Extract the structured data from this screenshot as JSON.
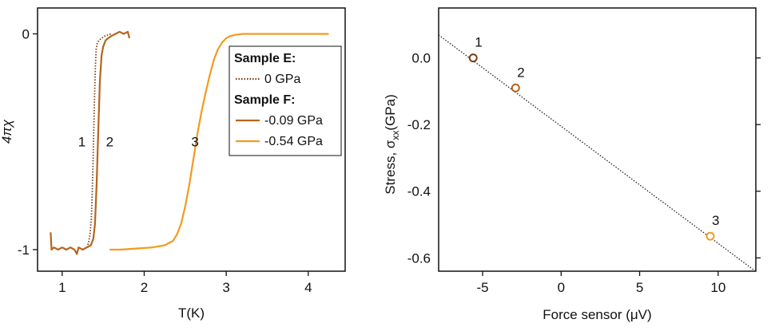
{
  "chart_data": [
    {
      "type": "line",
      "xlabel": "T(K)",
      "ylabel": "4πχ",
      "xlim": [
        0.7,
        4.45
      ],
      "ylim": [
        0.12,
        -1.1
      ],
      "xticks": [
        1,
        2,
        3,
        4
      ],
      "yticks": [
        -1,
        0
      ],
      "grid": false,
      "legend_placement": "top-right",
      "legend": [
        {
          "kind": "heading",
          "text": "Sample E:"
        },
        {
          "kind": "entry",
          "text": "0 GPa",
          "series": 0
        },
        {
          "kind": "heading",
          "text": "Sample F:"
        },
        {
          "kind": "entry",
          "text": "-0.09 GPa",
          "series": 1
        },
        {
          "kind": "entry",
          "text": "-0.54 GPa",
          "series": 2
        }
      ],
      "series": [
        {
          "name": "0 GPa",
          "color": "#7a3d10",
          "dash": "dotted",
          "label": "1",
          "x": [
            1.3,
            1.32,
            1.34,
            1.355,
            1.365,
            1.375,
            1.385,
            1.395,
            1.405,
            1.415,
            1.43,
            1.45,
            1.48,
            1.52,
            1.56,
            1.6
          ],
          "y": [
            -0.99,
            -0.97,
            -0.93,
            -0.86,
            -0.76,
            -0.62,
            -0.45,
            -0.28,
            -0.15,
            -0.07,
            -0.04,
            -0.03,
            -0.02,
            -0.01,
            -0.005,
            0.0
          ]
        },
        {
          "name": "-0.09 GPa",
          "color": "#b5651d",
          "dash": "solid",
          "label": "2",
          "x": [
            0.86,
            0.87,
            0.9,
            0.95,
            1.0,
            1.05,
            1.1,
            1.15,
            1.18,
            1.2,
            1.25,
            1.3,
            1.35,
            1.38,
            1.4,
            1.42,
            1.44,
            1.46,
            1.48,
            1.5,
            1.53,
            1.56,
            1.6,
            1.65,
            1.7,
            1.75,
            1.8,
            1.82
          ],
          "y": [
            -0.92,
            -1.0,
            -0.99,
            -1.0,
            -0.99,
            -1.0,
            -0.99,
            -1.0,
            -1.02,
            -0.99,
            -1.0,
            -0.99,
            -0.98,
            -0.95,
            -0.88,
            -0.7,
            -0.45,
            -0.22,
            -0.1,
            -0.06,
            -0.03,
            -0.02,
            -0.01,
            0.0,
            0.01,
            0.0,
            0.01,
            -0.02
          ]
        },
        {
          "name": "-0.54 GPa",
          "color": "#f39a1e",
          "dash": "solid",
          "label": "3",
          "x": [
            1.58,
            1.7,
            1.9,
            2.1,
            2.25,
            2.35,
            2.4,
            2.45,
            2.5,
            2.55,
            2.6,
            2.65,
            2.7,
            2.75,
            2.8,
            2.85,
            2.9,
            2.95,
            3.0,
            3.05,
            3.1,
            3.2,
            3.4,
            3.6,
            3.8,
            4.0,
            4.2,
            4.25
          ],
          "y": [
            -1.0,
            -1.0,
            -0.995,
            -0.99,
            -0.98,
            -0.96,
            -0.93,
            -0.88,
            -0.8,
            -0.7,
            -0.58,
            -0.46,
            -0.36,
            -0.27,
            -0.19,
            -0.12,
            -0.07,
            -0.04,
            -0.02,
            -0.01,
            -0.005,
            0.0,
            0.0,
            0.0,
            0.0,
            0.0,
            0.0,
            0.0
          ]
        }
      ]
    },
    {
      "type": "scatter",
      "xlabel": "Force sensor (μV)",
      "ylabel": "Stress, σxx(GPa)",
      "ylabel_parts": {
        "pre": "Stress, σ",
        "sub": "xx",
        "post": "(GPa)"
      },
      "xlim": [
        -7.8,
        12.4
      ],
      "ylim": [
        -0.64,
        0.15
      ],
      "xticks": [
        -5,
        0,
        5,
        10
      ],
      "yticks": [
        0.0,
        -0.2,
        -0.4,
        -0.6
      ],
      "ytick_labels": [
        "0.0",
        "-0.2",
        "-0.4",
        "-0.6"
      ],
      "grid": false,
      "fit_line": {
        "x": [
          -7.8,
          12.4
        ],
        "y": [
          0.069,
          -0.641
        ],
        "style": "dotted"
      },
      "points": [
        {
          "label": "1",
          "x": -5.6,
          "y": 0.0,
          "color": "#7a3d10"
        },
        {
          "label": "2",
          "x": -2.9,
          "y": -0.09,
          "color": "#b5651d"
        },
        {
          "label": "3",
          "x": 9.5,
          "y": -0.535,
          "color": "#f39a1e"
        }
      ]
    }
  ]
}
